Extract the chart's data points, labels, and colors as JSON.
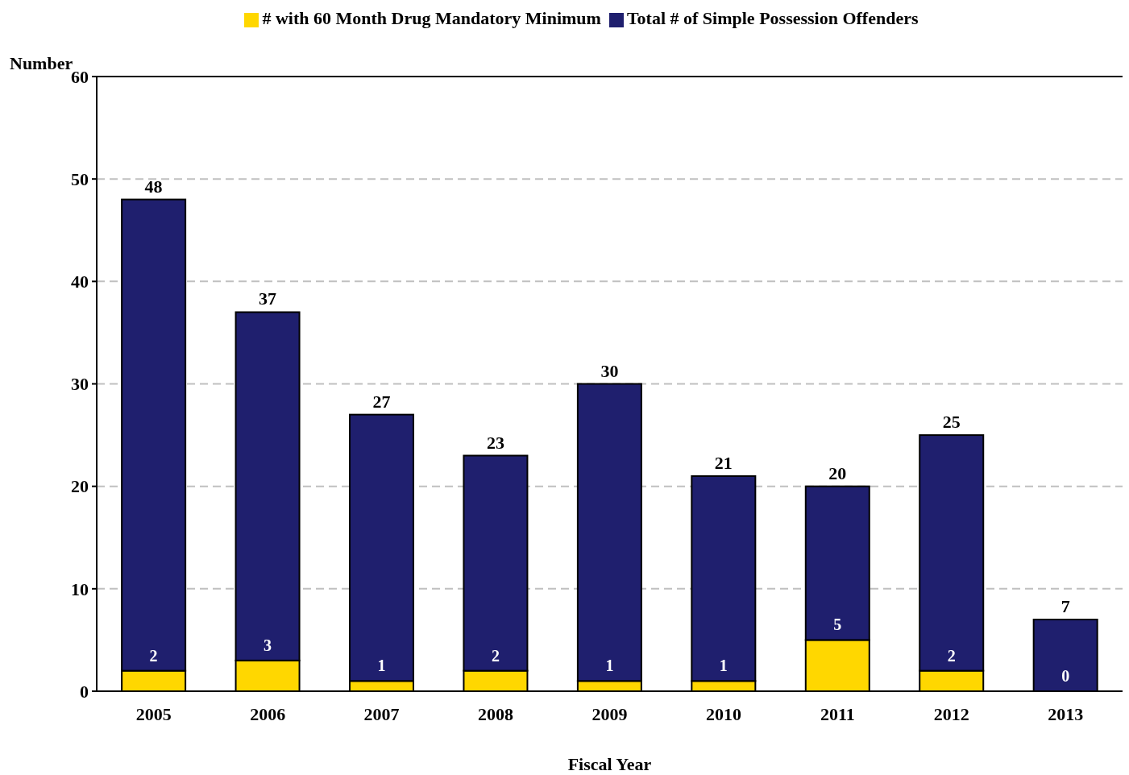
{
  "chart_data": {
    "type": "bar",
    "xlabel": "Fiscal Year",
    "ylabel": "Number",
    "categories": [
      "2005",
      "2006",
      "2007",
      "2008",
      "2009",
      "2010",
      "2011",
      "2012",
      "2013"
    ],
    "stacked": true,
    "series": [
      {
        "name": "# with 60 Month Drug Mandatory Minimum",
        "color": "#ffd700",
        "values": [
          2,
          3,
          1,
          2,
          1,
          1,
          5,
          2,
          0
        ],
        "value_labels": [
          "2",
          "3",
          "1",
          "2",
          "1",
          "1",
          "5",
          "2",
          "0"
        ]
      },
      {
        "name": "Total # of Simple Possession Offenders",
        "color": "#1f1f6e",
        "values": [
          46,
          34,
          26,
          21,
          29,
          20,
          15,
          23,
          7
        ]
      }
    ],
    "totals": [
      "48",
      "37",
      "27",
      "23",
      "30",
      "21",
      "20",
      "25",
      "7"
    ],
    "ylim": [
      0,
      60
    ],
    "yticks": [
      0,
      10,
      20,
      30,
      40,
      50,
      60
    ],
    "grid": "y",
    "legend": "top"
  }
}
